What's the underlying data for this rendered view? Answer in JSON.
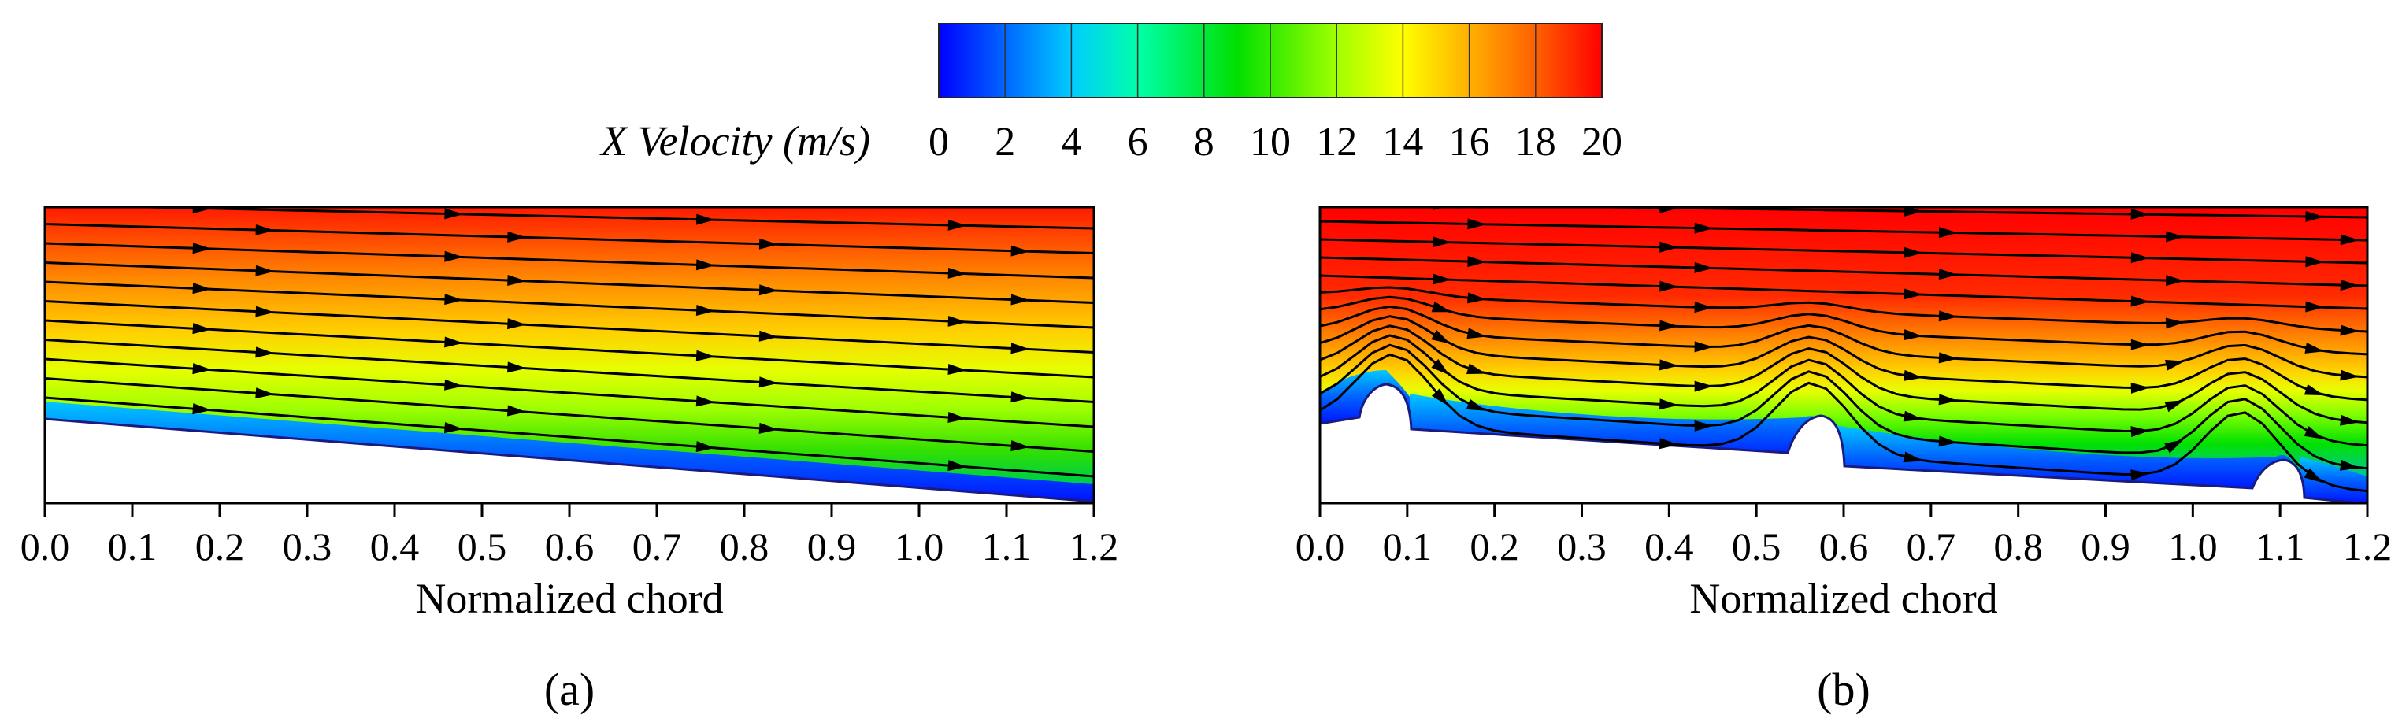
{
  "colorbar": {
    "title": "X Velocity (m/s)",
    "min": 0,
    "max": 20,
    "ticks": [
      "0",
      "2",
      "4",
      "6",
      "8",
      "10",
      "12",
      "14",
      "16",
      "18",
      "20"
    ],
    "colormap": [
      "#0000ff",
      "#0080ff",
      "#00ffff",
      "#00ff80",
      "#00dd00",
      "#80ff00",
      "#ffff00",
      "#ffa000",
      "#ff3300",
      "#ff0000"
    ]
  },
  "chart_data": [
    {
      "type": "heatmap",
      "panel": "(a)",
      "xlabel": "Normalized chord",
      "xlim": [
        0,
        1.2
      ],
      "xticks": [
        "0.0",
        "0.1",
        "0.2",
        "0.3",
        "0.4",
        "0.5",
        "0.6",
        "0.7",
        "0.8",
        "0.9",
        "1.0",
        "1.1",
        "1.2"
      ],
      "surface": "smooth",
      "velocity_range": [
        0,
        20
      ],
      "streamlines": 11
    },
    {
      "type": "heatmap",
      "panel": "(b)",
      "xlabel": "Normalized chord",
      "xlim": [
        0,
        1.2
      ],
      "xticks": [
        "0.0",
        "0.1",
        "0.2",
        "0.3",
        "0.4",
        "0.5",
        "0.6",
        "0.7",
        "0.8",
        "0.9",
        "1.0",
        "1.1",
        "1.2"
      ],
      "surface": "ribbed",
      "rib_positions": [
        0.07,
        0.58,
        1.1
      ],
      "velocity_range": [
        0,
        20
      ],
      "streamlines": 13
    }
  ]
}
